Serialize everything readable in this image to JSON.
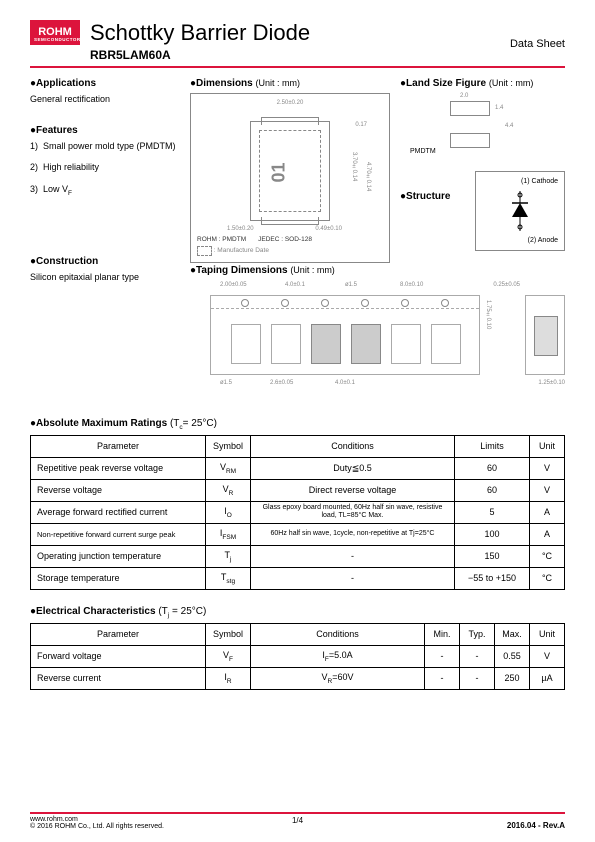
{
  "header": {
    "logo_main": "ROHM",
    "logo_sub": "SEMICONDUCTOR",
    "title": "Schottky Barrier Diode",
    "part_number": "RBR5LAM60A",
    "sheet_label": "Data Sheet"
  },
  "sections": {
    "applications_head": "●Applications",
    "applications_body": "General rectification",
    "features_head": "●Features",
    "features": [
      "Small power mold type (PMDTM)",
      "High reliability",
      "Low V"
    ],
    "feature3_sub": "F",
    "construction_head": "●Construction",
    "construction_body": "Silicon epitaxial planar type",
    "dimensions_head": "●Dimensions",
    "dimensions_unit": "(Unit : mm)",
    "land_head": "●Land Size Figure",
    "land_unit": "(Unit : mm)",
    "taping_head": "●Taping Dimensions",
    "taping_unit": "(Unit : mm)",
    "structure_head": "●Structure"
  },
  "package": {
    "dim_top": "2.50±0.20",
    "dim_right1": "0.17",
    "dim_right2": "4.70±0.14",
    "dim_right3": "3.70±0.14",
    "dim_bottom": "1.50±0.20",
    "dim_bottom2": "0.49±0.10",
    "mark": "01",
    "caption_rohm": "ROHM : PMDTM",
    "caption_jedec": "JEDEC : SOD-128",
    "caption_mfg": ": Manufacture Date",
    "land_dims": [
      "2.0",
      "1.4",
      "4.4"
    ],
    "land_label": "PMDTM",
    "taping_dims": [
      "2.00±0.05",
      "4.0±0.1",
      "ø1.5",
      "8.0±0.10",
      "1.75±0.10",
      "0.25±0.05",
      "ø1.5",
      "2.6±0.05",
      "4.0±0.1",
      "1.25±0.10"
    ]
  },
  "structure": {
    "terminal1": "(1) Cathode",
    "terminal2": "(2) Anode"
  },
  "abs_max": {
    "title": "●Absolute Maximum Ratings",
    "cond": "(T",
    "cond_sub": "c",
    "cond_tail": "= 25°C)",
    "headers": [
      "Parameter",
      "Symbol",
      "Conditions",
      "Limits",
      "Unit"
    ],
    "rows": [
      {
        "param": "Repetitive peak reverse voltage",
        "symbol": "V",
        "sym_sub": "RM",
        "cond": "Duty≦0.5",
        "limit": "60",
        "unit": "V"
      },
      {
        "param": "Reverse voltage",
        "symbol": "V",
        "sym_sub": "R",
        "cond": "Direct reverse voltage",
        "limit": "60",
        "unit": "V"
      },
      {
        "param": "Average forward rectified current",
        "symbol": "I",
        "sym_sub": "O",
        "cond": "Glass epoxy board mounted, 60Hz half sin wave, resistive load, TL=85°C Max.",
        "limit": "5",
        "unit": "A"
      },
      {
        "param": "Non-repetitive forward current surge peak",
        "symbol": "I",
        "sym_sub": "FSM",
        "cond": "60Hz half sin wave, 1cycle, non-repetitive at  Tj=25°C",
        "limit": "100",
        "unit": "A"
      },
      {
        "param": "Operating junction temperature",
        "symbol": "T",
        "sym_sub": "j",
        "cond": "-",
        "limit": "150",
        "unit": "°C"
      },
      {
        "param": "Storage temperature",
        "symbol": "T",
        "sym_sub": "stg",
        "cond": "-",
        "limit": "−55 to +150",
        "unit": "°C"
      }
    ]
  },
  "elec": {
    "title": "●Electrical Characteristics",
    "cond": "(T",
    "cond_sub": "j",
    "cond_tail": " = 25°C)",
    "headers": [
      "Parameter",
      "Symbol",
      "Conditions",
      "Min.",
      "Typ.",
      "Max.",
      "Unit"
    ],
    "rows": [
      {
        "param": "Forward voltage",
        "symbol": "V",
        "sym_sub": "F",
        "cond": "I",
        "cond_sub": "F",
        "cond_tail": "=5.0A",
        "min": "-",
        "typ": "-",
        "max": "0.55",
        "unit": "V"
      },
      {
        "param": "Reverse current",
        "symbol": "I",
        "sym_sub": "R",
        "cond": "V",
        "cond_sub": "R",
        "cond_tail": "=60V",
        "min": "-",
        "typ": "-",
        "max": "250",
        "unit": "µA"
      }
    ]
  },
  "footer": {
    "url": "www.rohm.com",
    "copyright": "© 2016  ROHM Co., Ltd. All rights reserved.",
    "page": "1/4",
    "rev": "2016.04 -  Rev.A"
  },
  "colors": {
    "brand": "#dc143c",
    "gray": "#888888"
  }
}
